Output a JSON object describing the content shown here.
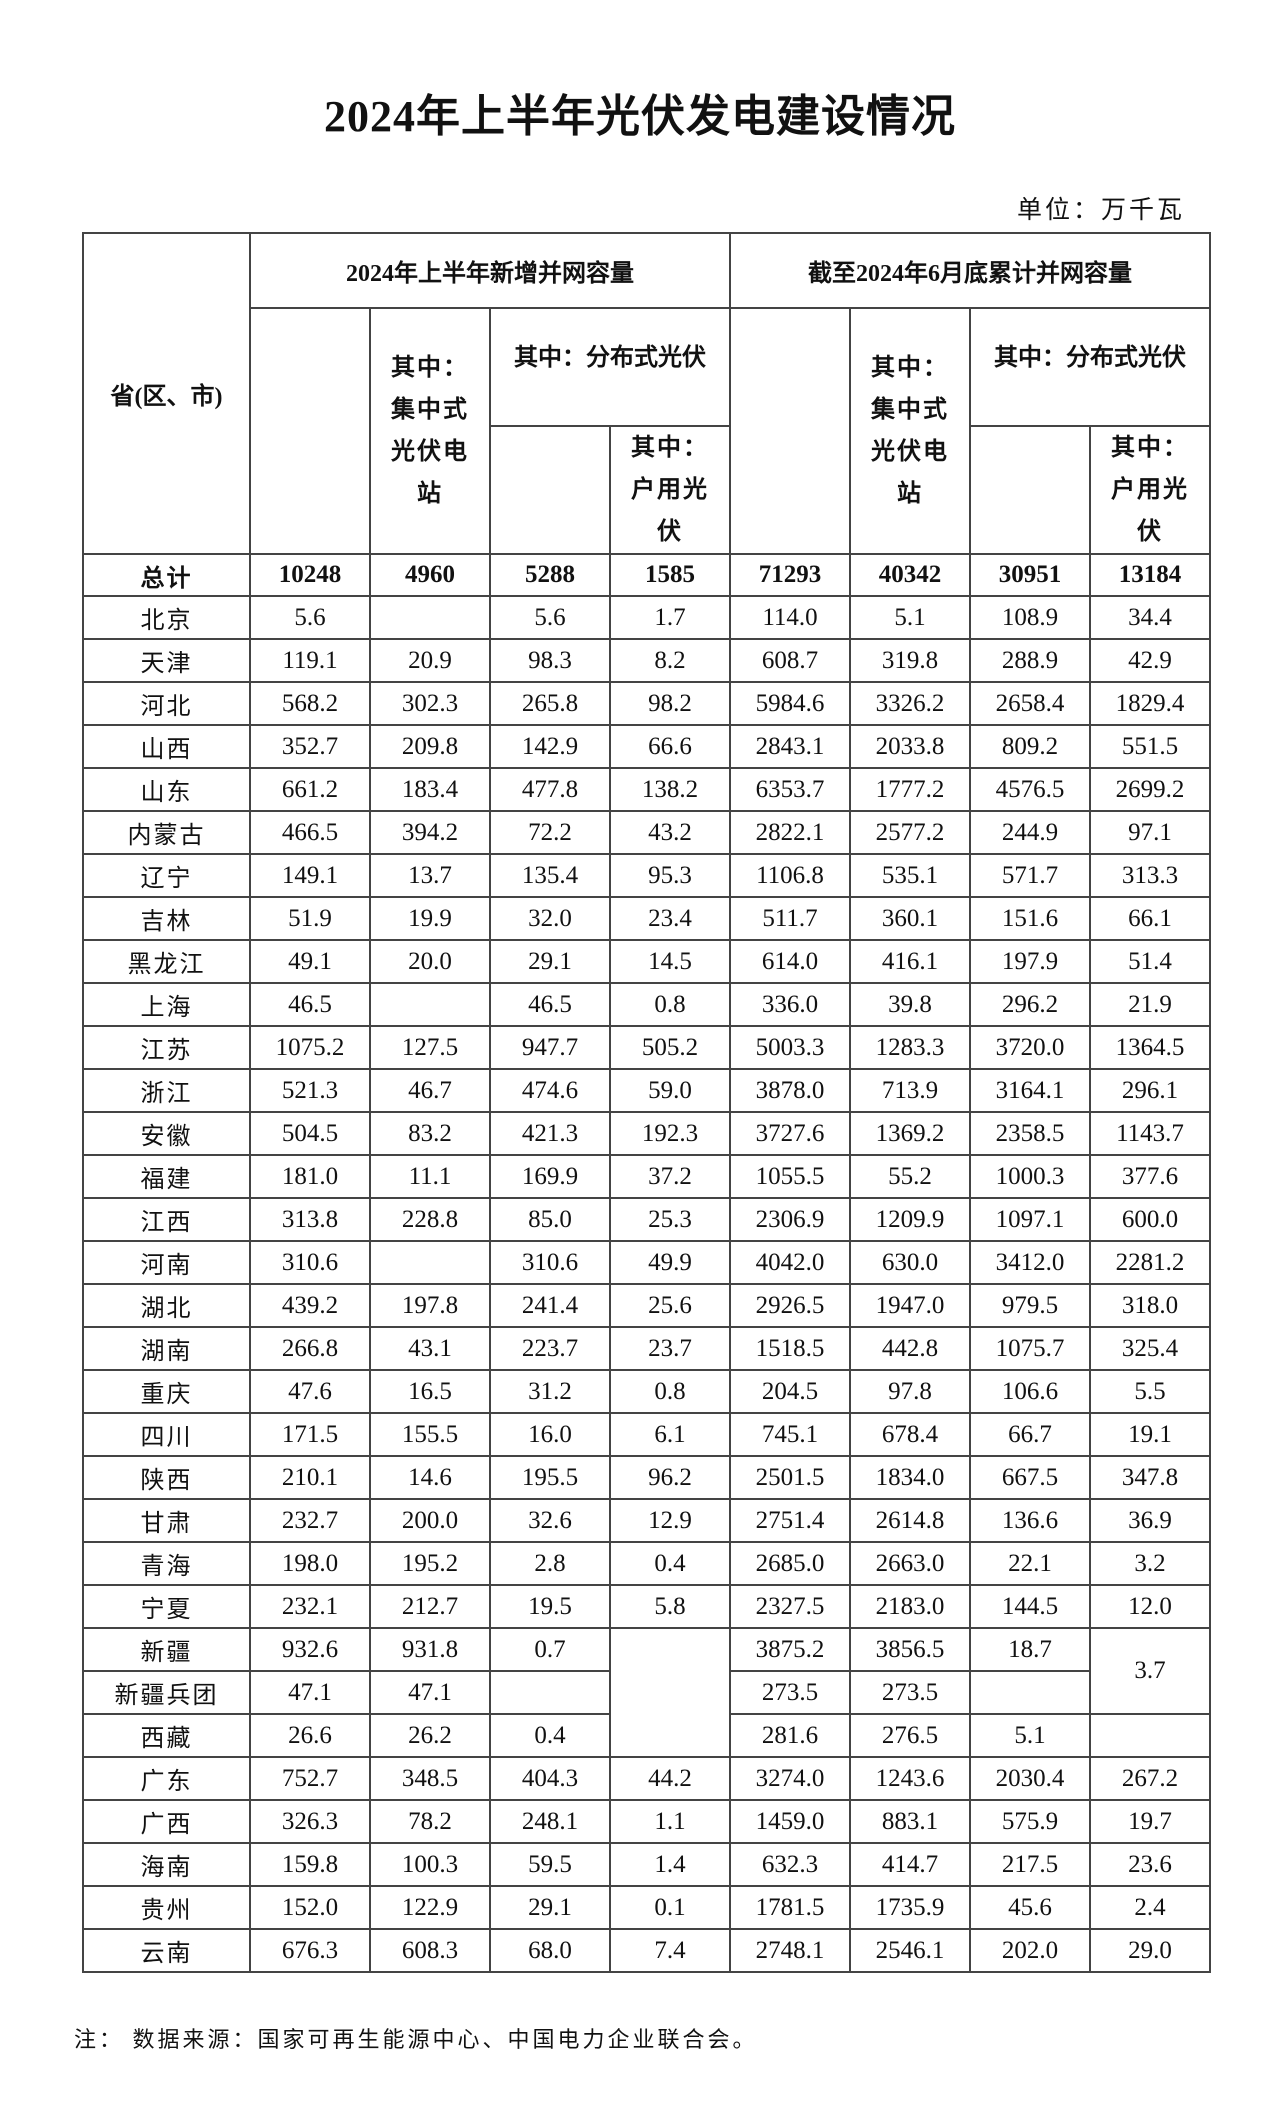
{
  "title": "2024年上半年光伏发电建设情况",
  "unit": "单位：万千瓦",
  "headers": {
    "province": "省(区、市)",
    "group_new": "2024年上半年新增并网容量",
    "group_cum": "截至2024年6月底累计并网容量",
    "centralized": "其中：集中式光伏电站",
    "distributed": "其中：分布式光伏",
    "household": "其中：户用光伏"
  },
  "total": {
    "label": "总计",
    "values": [
      "10248",
      "4960",
      "5288",
      "1585",
      "71293",
      "40342",
      "30951",
      "13184"
    ]
  },
  "rows": [
    {
      "name": "北京",
      "values": [
        "5.6",
        "",
        "5.6",
        "1.7",
        "114.0",
        "5.1",
        "108.9",
        "34.4"
      ]
    },
    {
      "name": "天津",
      "values": [
        "119.1",
        "20.9",
        "98.3",
        "8.2",
        "608.7",
        "319.8",
        "288.9",
        "42.9"
      ]
    },
    {
      "name": "河北",
      "values": [
        "568.2",
        "302.3",
        "265.8",
        "98.2",
        "5984.6",
        "3326.2",
        "2658.4",
        "1829.4"
      ]
    },
    {
      "name": "山西",
      "values": [
        "352.7",
        "209.8",
        "142.9",
        "66.6",
        "2843.1",
        "2033.8",
        "809.2",
        "551.5"
      ]
    },
    {
      "name": "山东",
      "values": [
        "661.2",
        "183.4",
        "477.8",
        "138.2",
        "6353.7",
        "1777.2",
        "4576.5",
        "2699.2"
      ]
    },
    {
      "name": "内蒙古",
      "values": [
        "466.5",
        "394.2",
        "72.2",
        "43.2",
        "2822.1",
        "2577.2",
        "244.9",
        "97.1"
      ]
    },
    {
      "name": "辽宁",
      "values": [
        "149.1",
        "13.7",
        "135.4",
        "95.3",
        "1106.8",
        "535.1",
        "571.7",
        "313.3"
      ]
    },
    {
      "name": "吉林",
      "values": [
        "51.9",
        "19.9",
        "32.0",
        "23.4",
        "511.7",
        "360.1",
        "151.6",
        "66.1"
      ]
    },
    {
      "name": "黑龙江",
      "values": [
        "49.1",
        "20.0",
        "29.1",
        "14.5",
        "614.0",
        "416.1",
        "197.9",
        "51.4"
      ]
    },
    {
      "name": "上海",
      "values": [
        "46.5",
        "",
        "46.5",
        "0.8",
        "336.0",
        "39.8",
        "296.2",
        "21.9"
      ]
    },
    {
      "name": "江苏",
      "values": [
        "1075.2",
        "127.5",
        "947.7",
        "505.2",
        "5003.3",
        "1283.3",
        "3720.0",
        "1364.5"
      ]
    },
    {
      "name": "浙江",
      "values": [
        "521.3",
        "46.7",
        "474.6",
        "59.0",
        "3878.0",
        "713.9",
        "3164.1",
        "296.1"
      ]
    },
    {
      "name": "安徽",
      "values": [
        "504.5",
        "83.2",
        "421.3",
        "192.3",
        "3727.6",
        "1369.2",
        "2358.5",
        "1143.7"
      ]
    },
    {
      "name": "福建",
      "values": [
        "181.0",
        "11.1",
        "169.9",
        "37.2",
        "1055.5",
        "55.2",
        "1000.3",
        "377.6"
      ]
    },
    {
      "name": "江西",
      "values": [
        "313.8",
        "228.8",
        "85.0",
        "25.3",
        "2306.9",
        "1209.9",
        "1097.1",
        "600.0"
      ]
    },
    {
      "name": "河南",
      "values": [
        "310.6",
        "",
        "310.6",
        "49.9",
        "4042.0",
        "630.0",
        "3412.0",
        "2281.2"
      ]
    },
    {
      "name": "湖北",
      "values": [
        "439.2",
        "197.8",
        "241.4",
        "25.6",
        "2926.5",
        "1947.0",
        "979.5",
        "318.0"
      ]
    },
    {
      "name": "湖南",
      "values": [
        "266.8",
        "43.1",
        "223.7",
        "23.7",
        "1518.5",
        "442.8",
        "1075.7",
        "325.4"
      ]
    },
    {
      "name": "重庆",
      "values": [
        "47.6",
        "16.5",
        "31.2",
        "0.8",
        "204.5",
        "97.8",
        "106.6",
        "5.5"
      ]
    },
    {
      "name": "四川",
      "values": [
        "171.5",
        "155.5",
        "16.0",
        "6.1",
        "745.1",
        "678.4",
        "66.7",
        "19.1"
      ]
    },
    {
      "name": "陕西",
      "values": [
        "210.1",
        "14.6",
        "195.5",
        "96.2",
        "2501.5",
        "1834.0",
        "667.5",
        "347.8"
      ]
    },
    {
      "name": "甘肃",
      "values": [
        "232.7",
        "200.0",
        "32.6",
        "12.9",
        "2751.4",
        "2614.8",
        "136.6",
        "36.9"
      ]
    },
    {
      "name": "青海",
      "values": [
        "198.0",
        "195.2",
        "2.8",
        "0.4",
        "2685.0",
        "2663.0",
        "22.1",
        "3.2"
      ]
    },
    {
      "name": "宁夏",
      "values": [
        "232.1",
        "212.7",
        "19.5",
        "5.8",
        "2327.5",
        "2183.0",
        "144.5",
        "12.0"
      ]
    },
    {
      "name": "新疆",
      "values": [
        "932.6",
        "931.8",
        "0.7",
        "",
        "3875.2",
        "3856.5",
        "18.7",
        "3.7"
      ]
    },
    {
      "name": "新疆兵团",
      "values": [
        "47.1",
        "47.1",
        "",
        null,
        "273.5",
        "273.5",
        "",
        null
      ]
    },
    {
      "name": "西藏",
      "values": [
        "26.6",
        "26.2",
        "0.4",
        null,
        "281.6",
        "276.5",
        "5.1",
        ""
      ]
    },
    {
      "name": "广东",
      "values": [
        "752.7",
        "348.5",
        "404.3",
        "44.2",
        "3274.0",
        "1243.6",
        "2030.4",
        "267.2"
      ]
    },
    {
      "name": "广西",
      "values": [
        "326.3",
        "78.2",
        "248.1",
        "1.1",
        "1459.0",
        "883.1",
        "575.9",
        "19.7"
      ]
    },
    {
      "name": "海南",
      "values": [
        "159.8",
        "100.3",
        "59.5",
        "1.4",
        "632.3",
        "414.7",
        "217.5",
        "23.6"
      ]
    },
    {
      "name": "贵州",
      "values": [
        "152.0",
        "122.9",
        "29.1",
        "0.1",
        "1781.5",
        "1735.9",
        "45.6",
        "2.4"
      ]
    },
    {
      "name": "云南",
      "values": [
        "676.3",
        "608.3",
        "68.0",
        "7.4",
        "2748.1",
        "2546.1",
        "202.0",
        "29.0"
      ]
    }
  ],
  "note": "注：  数据来源：国家可再生能源中心、中国电力企业联合会。"
}
